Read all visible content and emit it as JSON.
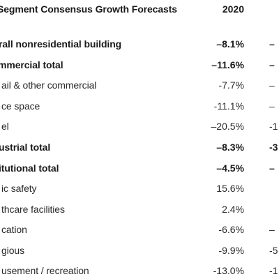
{
  "table": {
    "title": "Segment Consensus Growth Forecasts",
    "year_header": "2020",
    "rows": [
      {
        "label": "rall nonresidential building",
        "value": "–8.1%",
        "next": "–",
        "bold": true
      },
      {
        "label": "mmercial total",
        "value": "–11.6%",
        "next": "–",
        "bold": true
      },
      {
        "label": "ail & other commercial",
        "value": "-7.7%",
        "next": "–",
        "bold": false
      },
      {
        "label": "ce space",
        "value": "-11.1%",
        "next": "–",
        "bold": false
      },
      {
        "label": "el",
        "value": "–20.5%",
        "next": "-1",
        "bold": false
      },
      {
        "label": "ustrial total",
        "value": "–8.3%",
        "next": "-3",
        "bold": true
      },
      {
        "label": "itutional total",
        "value": "–4.5%",
        "next": "–",
        "bold": true
      },
      {
        "label": "ic safety",
        "value": "15.6%",
        "next": "",
        "bold": false
      },
      {
        "label": "thcare facilities",
        "value": "2.4%",
        "next": "",
        "bold": false
      },
      {
        "label": "cation",
        "value": "-6.6%",
        "next": "–",
        "bold": false
      },
      {
        "label": "gious",
        "value": "-9.9%",
        "next": "-5",
        "bold": false
      },
      {
        "label": "usement / recreation",
        "value": "-13.0%",
        "next": "-1",
        "bold": false
      }
    ]
  }
}
